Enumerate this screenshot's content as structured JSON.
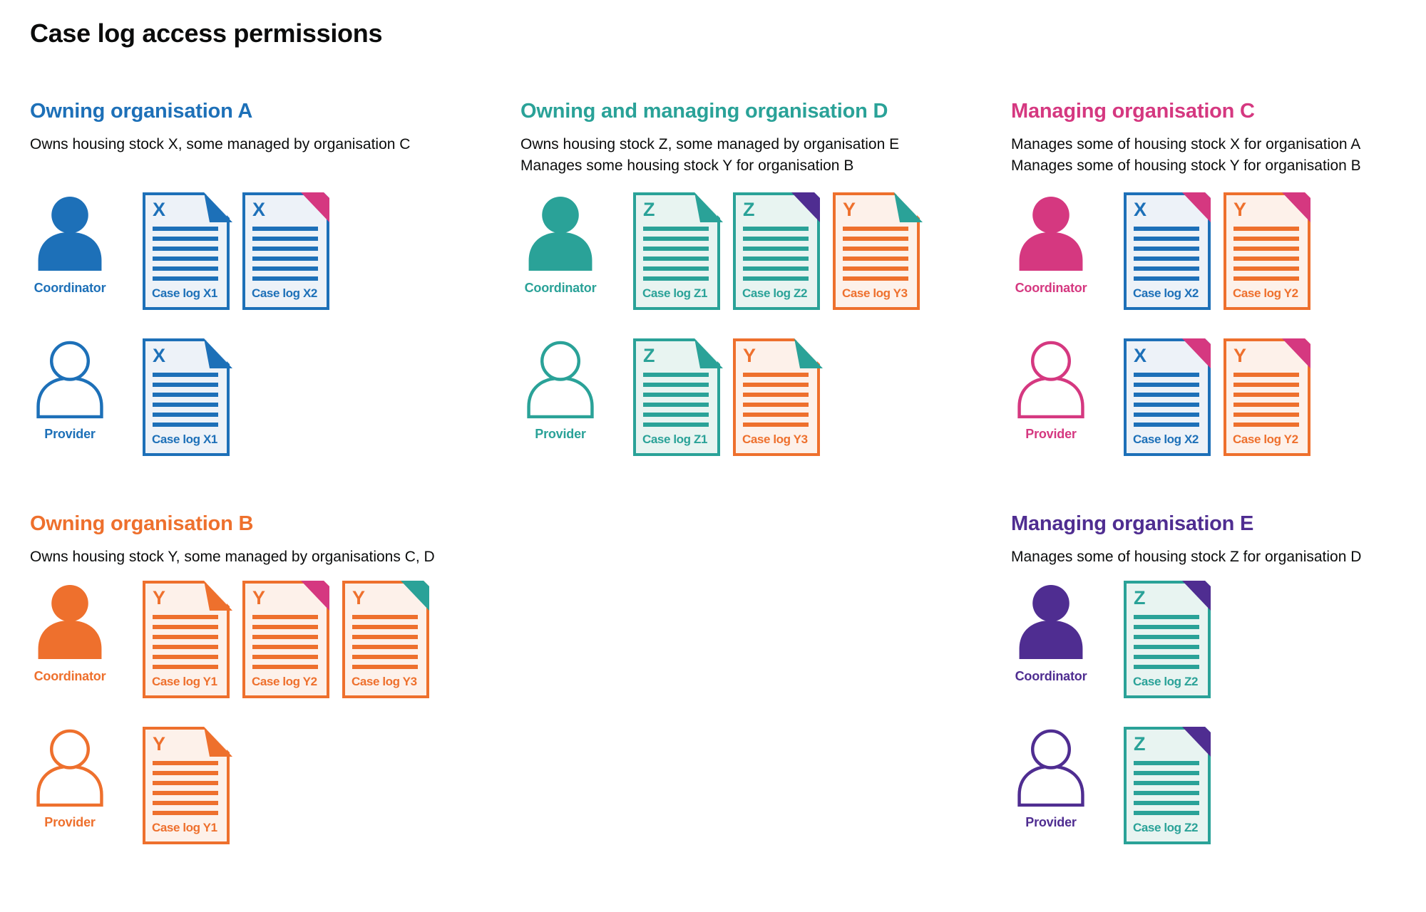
{
  "page": {
    "title": "Case log access permissions"
  },
  "colors": {
    "blue": "#1d70b8",
    "teal": "#2aa298",
    "pink": "#d53880",
    "orange": "#ee702d",
    "purple": "#4f2d91",
    "text": "#0b0c0c",
    "background": "#ffffff",
    "doc_bg_blue": "#edf2f8",
    "doc_bg_teal": "#e8f4f1",
    "doc_bg_orange": "#fdf1ea"
  },
  "document_lines_count": 6,
  "sections": [
    {
      "id": "owning-organisation-a",
      "title": "Owning organisation A",
      "color": "blue",
      "description_lines": [
        "Owns housing stock X, some managed by organisation C"
      ],
      "layout": {
        "row": 1,
        "col": 1
      },
      "roles": [
        {
          "label": "Coordinator",
          "person": "filled",
          "docs": [
            {
              "letter": "X",
              "label": "Case log X1",
              "doc_color": "blue",
              "fold_color": "blue",
              "fold_style": "notch"
            },
            {
              "letter": "X",
              "label": "Case log X2",
              "doc_color": "blue",
              "fold_color": "pink",
              "fold_style": "solid"
            }
          ]
        },
        {
          "label": "Provider",
          "person": "outline",
          "docs": [
            {
              "letter": "X",
              "label": "Case log X1",
              "doc_color": "blue",
              "fold_color": "blue",
              "fold_style": "notch"
            }
          ]
        }
      ]
    },
    {
      "id": "owning-and-managing-organisation-d",
      "title": "Owning and managing organisation D",
      "color": "teal",
      "description_lines": [
        "Owns housing stock Z, some managed by organisation E",
        "Manages some housing stock Y for organisation B"
      ],
      "layout": {
        "row": 1,
        "col": 2
      },
      "roles": [
        {
          "label": "Coordinator",
          "person": "filled",
          "docs": [
            {
              "letter": "Z",
              "label": "Case log Z1",
              "doc_color": "teal",
              "fold_color": "teal",
              "fold_style": "notch"
            },
            {
              "letter": "Z",
              "label": "Case log Z2",
              "doc_color": "teal",
              "fold_color": "purple",
              "fold_style": "solid"
            },
            {
              "letter": "Y",
              "label": "Case log Y3",
              "doc_color": "orange",
              "fold_color": "teal",
              "fold_style": "notch"
            }
          ]
        },
        {
          "label": "Provider",
          "person": "outline",
          "docs": [
            {
              "letter": "Z",
              "label": "Case log Z1",
              "doc_color": "teal",
              "fold_color": "teal",
              "fold_style": "notch"
            },
            {
              "letter": "Y",
              "label": "Case log Y3",
              "doc_color": "orange",
              "fold_color": "teal",
              "fold_style": "notch"
            }
          ]
        }
      ]
    },
    {
      "id": "managing-organisation-c",
      "title": "Managing organisation C",
      "color": "pink",
      "description_lines": [
        "Manages some of housing stock X for organisation A",
        "Manages some of housing stock Y for organisation B"
      ],
      "layout": {
        "row": 1,
        "col": 3
      },
      "roles": [
        {
          "label": "Coordinator",
          "person": "filled",
          "docs": [
            {
              "letter": "X",
              "label": "Case log X2",
              "doc_color": "blue",
              "fold_color": "pink",
              "fold_style": "solid"
            },
            {
              "letter": "Y",
              "label": "Case log Y2",
              "doc_color": "orange",
              "fold_color": "pink",
              "fold_style": "solid"
            }
          ]
        },
        {
          "label": "Provider",
          "person": "outline",
          "docs": [
            {
              "letter": "X",
              "label": "Case log X2",
              "doc_color": "blue",
              "fold_color": "pink",
              "fold_style": "solid"
            },
            {
              "letter": "Y",
              "label": "Case log Y2",
              "doc_color": "orange",
              "fold_color": "pink",
              "fold_style": "solid"
            }
          ]
        }
      ]
    },
    {
      "id": "owning-organisation-b",
      "title": "Owning organisation B",
      "color": "orange",
      "description_lines": [
        "Owns housing stock Y, some managed by organisations C, D"
      ],
      "layout": {
        "row": 2,
        "col": 1
      },
      "roles": [
        {
          "label": "Coordinator",
          "person": "filled",
          "docs": [
            {
              "letter": "Y",
              "label": "Case log Y1",
              "doc_color": "orange",
              "fold_color": "orange",
              "fold_style": "notch"
            },
            {
              "letter": "Y",
              "label": "Case log Y2",
              "doc_color": "orange",
              "fold_color": "pink",
              "fold_style": "solid"
            },
            {
              "letter": "Y",
              "label": "Case log Y3",
              "doc_color": "orange",
              "fold_color": "teal",
              "fold_style": "solid"
            }
          ]
        },
        {
          "label": "Provider",
          "person": "outline",
          "docs": [
            {
              "letter": "Y",
              "label": "Case log Y1",
              "doc_color": "orange",
              "fold_color": "orange",
              "fold_style": "notch"
            }
          ]
        }
      ]
    },
    {
      "id": "managing-organisation-e",
      "title": "Managing organisation E",
      "color": "purple",
      "description_lines": [
        "Manages some of housing stock Z for organisation D"
      ],
      "layout": {
        "row": 2,
        "col": 3
      },
      "roles": [
        {
          "label": "Coordinator",
          "person": "filled",
          "docs": [
            {
              "letter": "Z",
              "label": "Case log Z2",
              "doc_color": "teal",
              "fold_color": "purple",
              "fold_style": "solid"
            }
          ]
        },
        {
          "label": "Provider",
          "person": "outline",
          "docs": [
            {
              "letter": "Z",
              "label": "Case log Z2",
              "doc_color": "teal",
              "fold_color": "purple",
              "fold_style": "solid"
            }
          ]
        }
      ]
    }
  ]
}
